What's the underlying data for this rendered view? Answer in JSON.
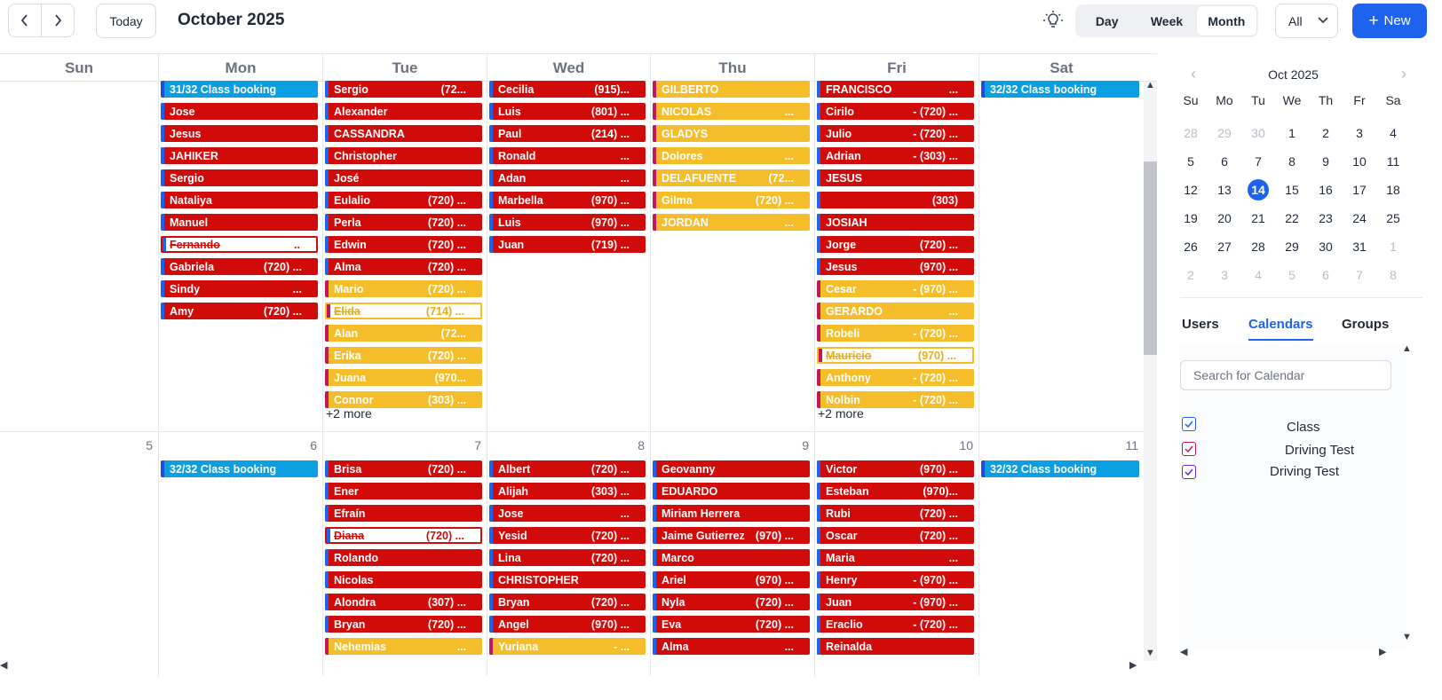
{
  "header": {
    "prev_icon": "chevron-left-icon",
    "next_icon": "chevron-right-icon",
    "today_label": "Today",
    "title": "October 2025",
    "theme_icon": "lightbulb-icon",
    "views": [
      {
        "label": "Day",
        "active": false
      },
      {
        "label": "Week",
        "active": false
      },
      {
        "label": "Month",
        "active": true
      }
    ],
    "filter_value": "All",
    "new_label": "New"
  },
  "calendar": {
    "weekdays": [
      "Sun",
      "Mon",
      "Tue",
      "Wed",
      "Thu",
      "Fri",
      "Sat"
    ],
    "week1": {
      "mon": [
        {
          "name": "31/32  Class booking",
          "phone": "",
          "color": "blue"
        },
        {
          "name": "Jose",
          "phone": "",
          "color": "red"
        },
        {
          "name": "Jesus",
          "phone": "",
          "color": "red"
        },
        {
          "name": "JAHIKER",
          "phone": "",
          "color": "red"
        },
        {
          "name": "Sergio",
          "phone": "",
          "color": "red"
        },
        {
          "name": "Nataliya",
          "phone": "",
          "color": "red"
        },
        {
          "name": "Manuel",
          "phone": "",
          "color": "red"
        },
        {
          "name": "Fernando",
          "phone": "..",
          "color": "cancel-red"
        },
        {
          "name": "Gabriela",
          "phone": "(720) ...",
          "color": "red"
        },
        {
          "name": "Sindy",
          "phone": "...",
          "color": "red"
        },
        {
          "name": "Amy",
          "phone": "(720) ...",
          "color": "red"
        }
      ],
      "tue": [
        {
          "name": "Sergio",
          "phone": "(72...",
          "color": "red"
        },
        {
          "name": "Alexander",
          "phone": "",
          "color": "red"
        },
        {
          "name": "CASSANDRA",
          "phone": "",
          "color": "red"
        },
        {
          "name": "Christopher",
          "phone": "",
          "color": "red"
        },
        {
          "name": "José",
          "phone": "",
          "color": "red"
        },
        {
          "name": "Eulalio",
          "phone": "(720) ...",
          "color": "red"
        },
        {
          "name": "Perla",
          "phone": "(720) ...",
          "color": "red"
        },
        {
          "name": "Edwin",
          "phone": "(720) ...",
          "color": "red"
        },
        {
          "name": "Alma",
          "phone": "(720) ...",
          "color": "red"
        },
        {
          "name": "Mario",
          "phone": "(720) ...",
          "color": "yellow"
        },
        {
          "name": "Elida",
          "phone": "(714) ...",
          "color": "cancel-yellow"
        },
        {
          "name": "Alan",
          "phone": "(72...",
          "color": "yellow"
        },
        {
          "name": "Erika",
          "phone": "(720) ...",
          "color": "yellow"
        },
        {
          "name": "Juana",
          "phone": "(970...",
          "color": "yellow"
        },
        {
          "name": "Connor",
          "phone": "(303) ...",
          "color": "yellow"
        }
      ],
      "tue_more": "+2 more",
      "wed": [
        {
          "name": "Cecilia",
          "phone": "(915)...",
          "color": "red"
        },
        {
          "name": "Luis",
          "phone": "(801) ...",
          "color": "red"
        },
        {
          "name": "Paul",
          "phone": "(214) ...",
          "color": "red"
        },
        {
          "name": "Ronald",
          "phone": "...",
          "color": "red"
        },
        {
          "name": "Adan",
          "phone": "...",
          "color": "red"
        },
        {
          "name": "Marbella",
          "phone": "(970) ...",
          "color": "red"
        },
        {
          "name": "Luis",
          "phone": "(970) ...",
          "color": "red"
        },
        {
          "name": "Juan",
          "phone": "(719) ...",
          "color": "red"
        }
      ],
      "thu": [
        {
          "name": "GILBERTO",
          "phone": "",
          "color": "yellow"
        },
        {
          "name": "NICOLAS",
          "phone": "...",
          "color": "yellow"
        },
        {
          "name": "GLADYS",
          "phone": "",
          "color": "yellow"
        },
        {
          "name": "Dolores",
          "phone": "...",
          "color": "yellow"
        },
        {
          "name": "DELAFUENTE",
          "phone": "(72...",
          "color": "yellow"
        },
        {
          "name": "Gilma",
          "phone": "(720) ...",
          "color": "yellow"
        },
        {
          "name": "JORDAN",
          "phone": "...",
          "color": "yellow"
        }
      ],
      "fri": [
        {
          "name": "FRANCISCO",
          "phone": "...",
          "color": "red"
        },
        {
          "name": "Cirilo",
          "phone": "- (720) ...",
          "color": "red"
        },
        {
          "name": "Julio",
          "phone": "- (720) ...",
          "color": "red"
        },
        {
          "name": "Adrian",
          "phone": "- (303) ...",
          "color": "red"
        },
        {
          "name": "JESUS",
          "phone": "",
          "color": "red"
        },
        {
          "name": "",
          "phone": "(303)",
          "color": "red"
        },
        {
          "name": "JOSIAH",
          "phone": "",
          "color": "red"
        },
        {
          "name": "Jorge",
          "phone": "(720) ...",
          "color": "red"
        },
        {
          "name": "Jesus",
          "phone": "(970) ...",
          "color": "red"
        },
        {
          "name": "Cesar",
          "phone": "- (970) ...",
          "color": "yellow"
        },
        {
          "name": "GERARDO",
          "phone": "...",
          "color": "yellow"
        },
        {
          "name": "Robeli",
          "phone": "- (720) ...",
          "color": "yellow"
        },
        {
          "name": "Mauricio",
          "phone": "(970) ...",
          "color": "cancel-yellow"
        },
        {
          "name": "Anthony",
          "phone": "- (720) ...",
          "color": "yellow"
        },
        {
          "name": "Nolbin",
          "phone": "- (720) ...",
          "color": "yellow"
        }
      ],
      "fri_more": "+2 more",
      "sat": [
        {
          "name": "32/32  Class booking",
          "phone": "",
          "color": "blue"
        }
      ]
    },
    "week2": {
      "day_numbers": [
        "5",
        "6",
        "7",
        "8",
        "9",
        "10",
        "11"
      ],
      "mon": [
        {
          "name": "32/32  Class booking",
          "phone": "",
          "color": "blue"
        }
      ],
      "tue": [
        {
          "name": "Brisa",
          "phone": "(720) ...",
          "color": "red"
        },
        {
          "name": "Ener",
          "phone": "",
          "color": "red"
        },
        {
          "name": "Efraín",
          "phone": "",
          "color": "red"
        },
        {
          "name": "Diana",
          "phone": "(720) ...",
          "color": "cancel-red"
        },
        {
          "name": "Rolando",
          "phone": "",
          "color": "red"
        },
        {
          "name": "Nicolas",
          "phone": "",
          "color": "red"
        },
        {
          "name": "Alondra",
          "phone": "(307) ...",
          "color": "red"
        },
        {
          "name": "Bryan",
          "phone": "(720) ...",
          "color": "red"
        },
        {
          "name": "Nehemias",
          "phone": "...",
          "color": "yellow"
        }
      ],
      "wed": [
        {
          "name": "Albert",
          "phone": "(720) ...",
          "color": "red"
        },
        {
          "name": "Alijah",
          "phone": "(303) ...",
          "color": "red"
        },
        {
          "name": "Jose",
          "phone": "...",
          "color": "red"
        },
        {
          "name": "Yesid",
          "phone": "(720) ...",
          "color": "red"
        },
        {
          "name": "Lina",
          "phone": "(720) ...",
          "color": "red"
        },
        {
          "name": "CHRISTOPHER",
          "phone": "",
          "color": "red"
        },
        {
          "name": "Bryan",
          "phone": "(720) ...",
          "color": "red"
        },
        {
          "name": "Angel",
          "phone": "(970) ...",
          "color": "red"
        },
        {
          "name": "Yuriana",
          "phone": "- ...",
          "color": "yellow"
        }
      ],
      "thu": [
        {
          "name": "Geovanny",
          "phone": "",
          "color": "red"
        },
        {
          "name": "EDUARDO",
          "phone": "",
          "color": "red"
        },
        {
          "name": "Miriam Herrera",
          "phone": "",
          "color": "red"
        },
        {
          "name": "Jaime Gutierrez",
          "phone": "(970) ...",
          "color": "red"
        },
        {
          "name": "Marco",
          "phone": "",
          "color": "red"
        },
        {
          "name": "Ariel",
          "phone": "(970) ...",
          "color": "red"
        },
        {
          "name": "Nyla",
          "phone": "(720) ...",
          "color": "red"
        },
        {
          "name": "Eva",
          "phone": "(720) ...",
          "color": "red"
        },
        {
          "name": "Alma",
          "phone": "...",
          "color": "red"
        }
      ],
      "fri": [
        {
          "name": "Victor",
          "phone": "(970) ...",
          "color": "red"
        },
        {
          "name": "Esteban",
          "phone": "(970)...",
          "color": "red"
        },
        {
          "name": "Rubi",
          "phone": "(720) ...",
          "color": "red"
        },
        {
          "name": "Oscar",
          "phone": "(720) ...",
          "color": "red"
        },
        {
          "name": "Maria",
          "phone": "...",
          "color": "red"
        },
        {
          "name": "Henry",
          "phone": "- (970) ...",
          "color": "red"
        },
        {
          "name": "Juan",
          "phone": "- (970) ...",
          "color": "red"
        },
        {
          "name": "Eraclio",
          "phone": "- (720) ...",
          "color": "red"
        },
        {
          "name": "Reinalda",
          "phone": "",
          "color": "red"
        }
      ],
      "sat": [
        {
          "name": "32/32  Class booking",
          "phone": "",
          "color": "blue"
        }
      ]
    }
  },
  "mini_calendar": {
    "month_label": "Oct 2025",
    "weekdays": [
      "Su",
      "Mo",
      "Tu",
      "We",
      "Th",
      "Fr",
      "Sa"
    ],
    "weeks": [
      [
        "28",
        "29",
        "30",
        "1",
        "2",
        "3",
        "4"
      ],
      [
        "5",
        "6",
        "7",
        "8",
        "9",
        "10",
        "11"
      ],
      [
        "12",
        "13",
        "14",
        "15",
        "16",
        "17",
        "18"
      ],
      [
        "19",
        "20",
        "21",
        "22",
        "23",
        "24",
        "25"
      ],
      [
        "26",
        "27",
        "28",
        "29",
        "30",
        "31",
        "1"
      ],
      [
        "2",
        "3",
        "4",
        "5",
        "6",
        "7",
        "8"
      ]
    ],
    "today": "14"
  },
  "sidebar": {
    "tabs": [
      {
        "label": "Users",
        "active": false
      },
      {
        "label": "Calendars",
        "active": true
      },
      {
        "label": "Groups",
        "active": false
      }
    ],
    "search_placeholder": "Search for Calendar",
    "calendars": [
      {
        "label": "Class",
        "color": "#1d63ed"
      },
      {
        "label": "Driving Test",
        "color": "#c2185b"
      },
      {
        "label": "Driving Test",
        "color": "#6d28d9"
      }
    ]
  },
  "colors": {
    "accent": "#1d63ed",
    "event_red": "#d10a0a",
    "event_yellow": "#f5bd2a",
    "event_blue": "#0b9ee0"
  }
}
